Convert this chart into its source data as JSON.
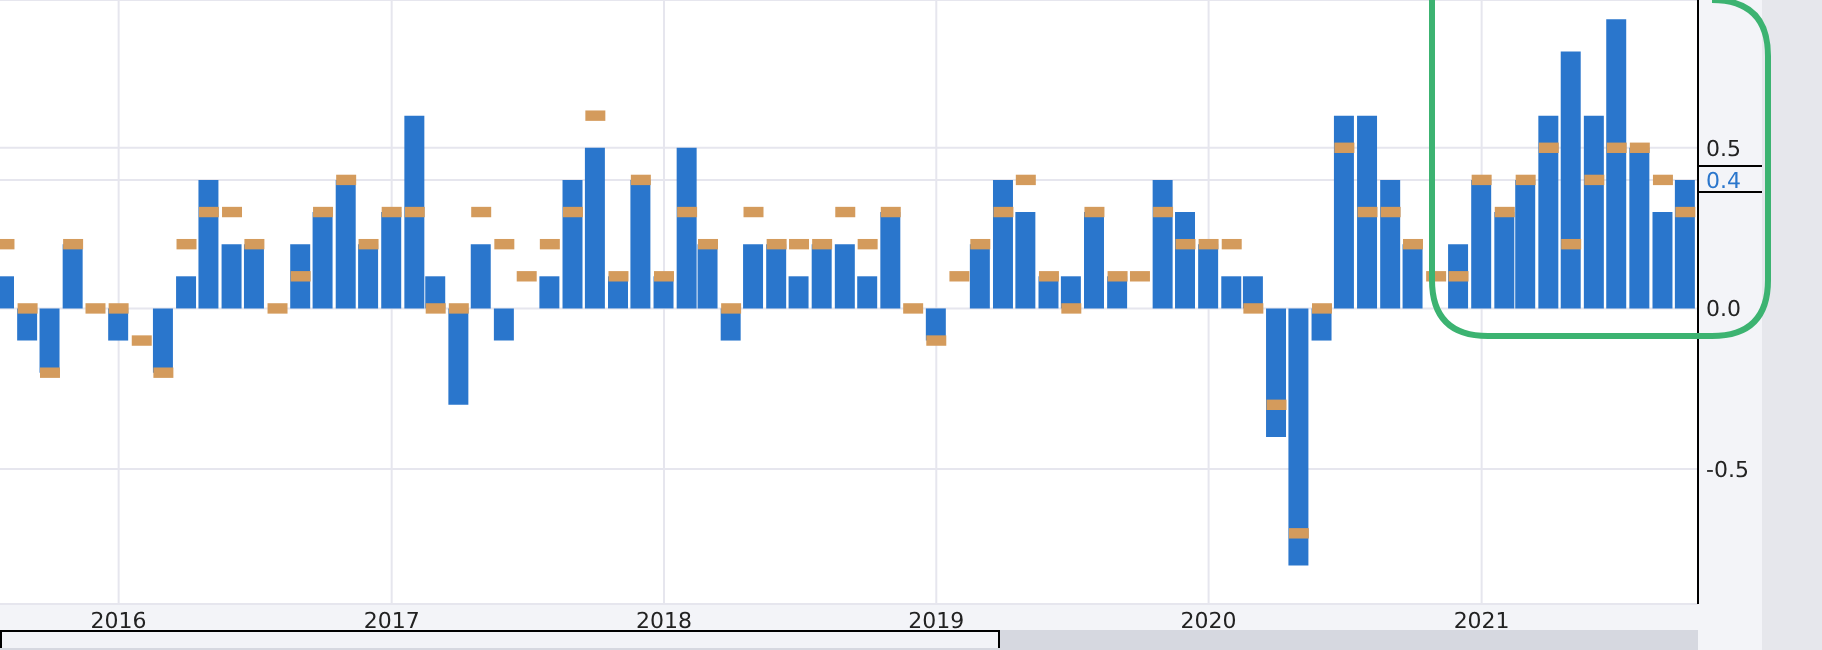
{
  "chart_data": {
    "type": "bar",
    "x": [
      "2015-08",
      "2015-09",
      "2015-10",
      "2015-11",
      "2015-12",
      "2016-01",
      "2016-02",
      "2016-03",
      "2016-04",
      "2016-05",
      "2016-06",
      "2016-07",
      "2016-08",
      "2016-09",
      "2016-10",
      "2016-11",
      "2016-12",
      "2017-01",
      "2017-02",
      "2017-03",
      "2017-04",
      "2017-05",
      "2017-06",
      "2017-07",
      "2017-08",
      "2017-09",
      "2017-10",
      "2017-11",
      "2017-12",
      "2018-01",
      "2018-02",
      "2018-03",
      "2018-04",
      "2018-05",
      "2018-06",
      "2018-07",
      "2018-08",
      "2018-09",
      "2018-10",
      "2018-11",
      "2018-12",
      "2019-01",
      "2019-02",
      "2019-03",
      "2019-04",
      "2019-05",
      "2019-06",
      "2019-07",
      "2019-08",
      "2019-09",
      "2019-10",
      "2019-11",
      "2019-12",
      "2020-01",
      "2020-02",
      "2020-03",
      "2020-04",
      "2020-05",
      "2020-06",
      "2020-07",
      "2020-08",
      "2020-09",
      "2020-10",
      "2020-11",
      "2020-12",
      "2021-01",
      "2021-02",
      "2021-03",
      "2021-04",
      "2021-05",
      "2021-06",
      "2021-07",
      "2021-08",
      "2021-09",
      "2021-10"
    ],
    "series": [
      {
        "color": "#2a76cc",
        "values": [
          0.1,
          -0.1,
          -0.2,
          0.2,
          0,
          -0.1,
          0,
          -0.2,
          0.1,
          0.4,
          0.2,
          0.2,
          0,
          0.2,
          0.3,
          0.4,
          0.2,
          0.3,
          0.6,
          0.1,
          -0.3,
          0.2,
          -0.1,
          0,
          0.1,
          0.4,
          0.5,
          0.1,
          0.4,
          0.1,
          0.5,
          0.2,
          -0.1,
          0.2,
          0.2,
          0.1,
          0.2,
          0.2,
          0.1,
          0.3,
          0,
          -0.1,
          0,
          0.2,
          0.4,
          0.3,
          0.1,
          0.1,
          0.3,
          0.1,
          0,
          0.4,
          0.3,
          0.2,
          0.1,
          0.1,
          -0.4,
          -0.8,
          -0.1,
          0.6,
          0.6,
          0.4,
          0.2,
          0,
          0.2,
          0.4,
          0.3,
          0.4,
          0.6,
          0.8,
          0.6,
          0.9,
          0.5,
          0.3,
          0.4
        ]
      },
      {
        "type": "scatter",
        "marker": "square",
        "color": "#d49b5c",
        "values": [
          0.2,
          0,
          -0.2,
          0.2,
          0,
          0,
          -0.1,
          -0.2,
          0.2,
          0.3,
          0.3,
          0.2,
          0,
          0.1,
          0.3,
          0.4,
          0.2,
          0.3,
          0.3,
          0,
          0,
          0.3,
          0.2,
          0.1,
          0.2,
          0.3,
          0.6,
          0.1,
          0.4,
          0.1,
          0.3,
          0.2,
          0,
          0.3,
          0.2,
          0.2,
          0.2,
          0.3,
          0.2,
          0.3,
          0,
          -0.1,
          0.1,
          0.2,
          0.3,
          0.4,
          0.1,
          0,
          0.3,
          0.1,
          0.1,
          0.3,
          0.2,
          0.2,
          0.2,
          0,
          -0.3,
          -0.7,
          0,
          0.5,
          0.3,
          0.3,
          0.2,
          0.1,
          0.1,
          0.4,
          0.3,
          0.4,
          0.5,
          0.2,
          0.4,
          0.5,
          0.5,
          0.4,
          0.3
        ]
      }
    ],
    "xlim": [
      "2015-07-26",
      "2021-10-18"
    ],
    "xticks": [
      "2016",
      "2017",
      "2018",
      "2019",
      "2020",
      "2021"
    ],
    "ylim": [
      -0.92,
      0.96
    ],
    "yticks": [
      -0.5,
      {
        "value": 0,
        "label": "0.0"
      },
      {
        "value": 0.4,
        "label": "0.4"
      },
      0.5
    ],
    "grid": true,
    "legend": false
  }
}
